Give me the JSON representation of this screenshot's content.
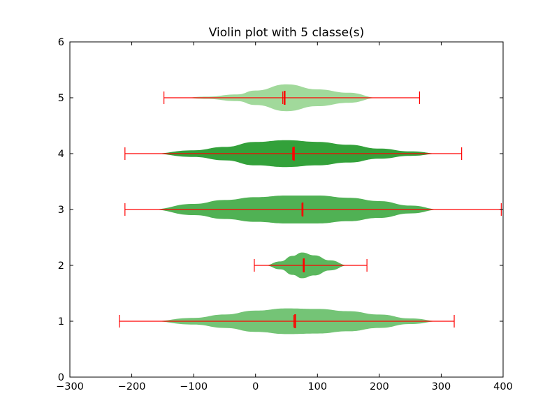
{
  "chart_data": {
    "type": "violin",
    "orientation": "horizontal",
    "title": "Violin plot with 5 classe(s)",
    "xlabel": "",
    "ylabel": "",
    "xlim": [
      -300,
      400
    ],
    "ylim": [
      0,
      6
    ],
    "x_ticks": [
      -300,
      -200,
      -100,
      0,
      100,
      200,
      300,
      400
    ],
    "y_ticks": [
      0,
      1,
      2,
      3,
      4,
      5,
      6
    ],
    "grid": false,
    "median_color": "#ff0000",
    "classes": [
      {
        "position": 1,
        "color": "#74c476",
        "min": -220,
        "max": 321,
        "mean": 62,
        "median": 64,
        "density": [
          [
            -170,
            0
          ],
          [
            -100,
            0.06
          ],
          [
            -50,
            0.12
          ],
          [
            0,
            0.19
          ],
          [
            50,
            0.23
          ],
          [
            100,
            0.22
          ],
          [
            150,
            0.18
          ],
          [
            200,
            0.12
          ],
          [
            250,
            0.05
          ],
          [
            300,
            0
          ]
        ]
      },
      {
        "position": 2,
        "color": "#5ab75d",
        "min": -2,
        "max": 180,
        "mean": 77,
        "median": 78,
        "density": [
          [
            15,
            0
          ],
          [
            40,
            0.07
          ],
          [
            60,
            0.17
          ],
          [
            75,
            0.23
          ],
          [
            95,
            0.18
          ],
          [
            120,
            0.09
          ],
          [
            150,
            0
          ]
        ]
      },
      {
        "position": 3,
        "color": "#50b154",
        "min": -211,
        "max": 397,
        "mean": 75,
        "median": 76,
        "density": [
          [
            -170,
            0
          ],
          [
            -100,
            0.1
          ],
          [
            -50,
            0.17
          ],
          [
            0,
            0.22
          ],
          [
            50,
            0.25
          ],
          [
            100,
            0.25
          ],
          [
            150,
            0.21
          ],
          [
            200,
            0.15
          ],
          [
            250,
            0.07
          ],
          [
            300,
            0
          ]
        ]
      },
      {
        "position": 4,
        "color": "#33a13a",
        "min": -211,
        "max": 333,
        "mean": 60,
        "median": 62,
        "density": [
          [
            -170,
            0
          ],
          [
            -100,
            0.06
          ],
          [
            -50,
            0.12
          ],
          [
            0,
            0.21
          ],
          [
            50,
            0.24
          ],
          [
            100,
            0.21
          ],
          [
            150,
            0.16
          ],
          [
            200,
            0.09
          ],
          [
            250,
            0.04
          ],
          [
            300,
            0
          ]
        ]
      },
      {
        "position": 5,
        "color": "#a1d99b",
        "min": -148,
        "max": 265,
        "mean": 44,
        "median": 47,
        "density": [
          [
            -120,
            0
          ],
          [
            -80,
            0.02
          ],
          [
            -30,
            0.06
          ],
          [
            0,
            0.13
          ],
          [
            50,
            0.24
          ],
          [
            100,
            0.15
          ],
          [
            150,
            0.09
          ],
          [
            200,
            0
          ]
        ]
      }
    ]
  }
}
